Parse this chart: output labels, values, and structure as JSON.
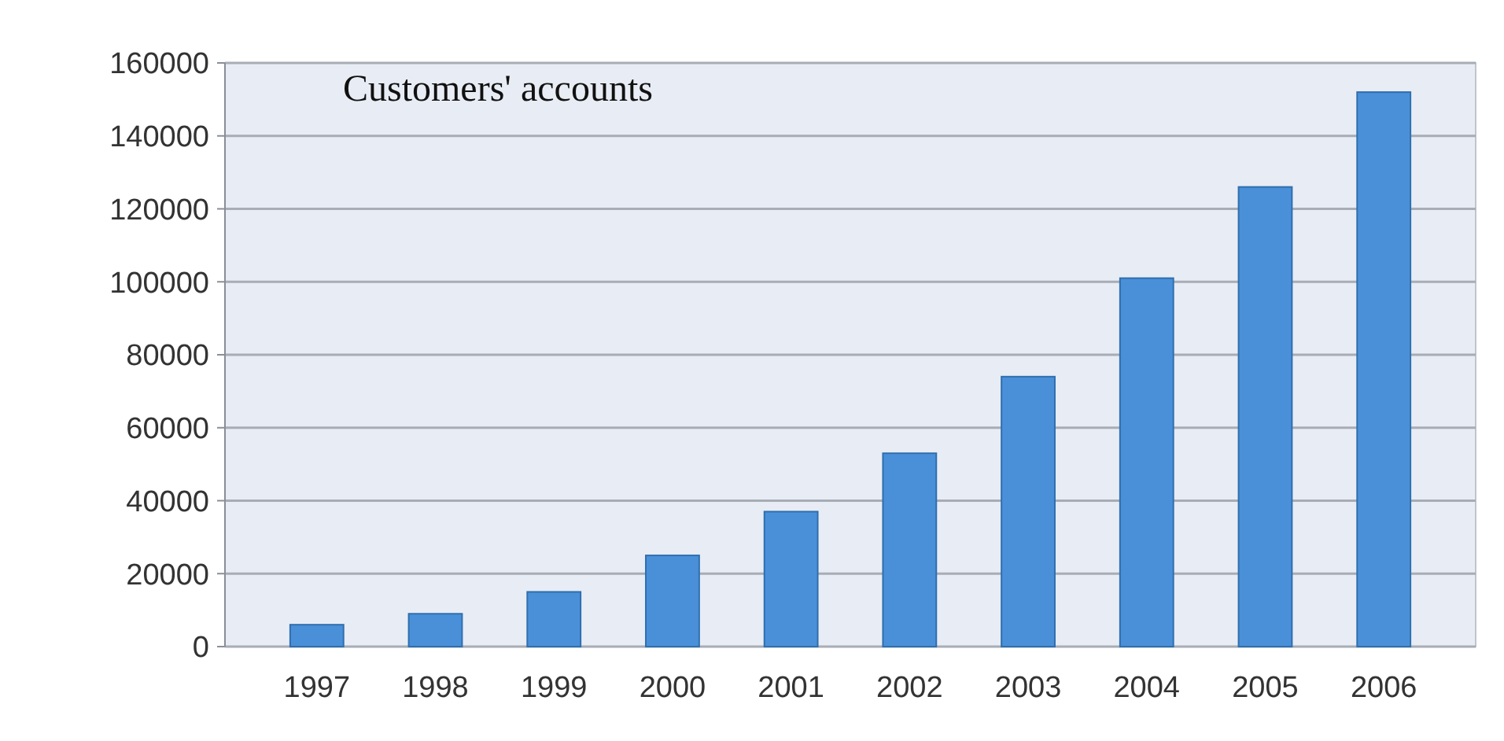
{
  "chart_data": {
    "type": "bar",
    "title": "Customers' accounts",
    "categories": [
      "1997",
      "1998",
      "1999",
      "2000",
      "2001",
      "2002",
      "2003",
      "2004",
      "2005",
      "2006"
    ],
    "values": [
      6000,
      9000,
      15000,
      25000,
      37000,
      53000,
      74000,
      101000,
      126000,
      152000
    ],
    "color": "#4a90d9",
    "ylim": [
      0,
      160000
    ],
    "yticks": [
      0,
      20000,
      40000,
      60000,
      80000,
      100000,
      120000,
      140000,
      160000
    ],
    "grid": "y"
  }
}
